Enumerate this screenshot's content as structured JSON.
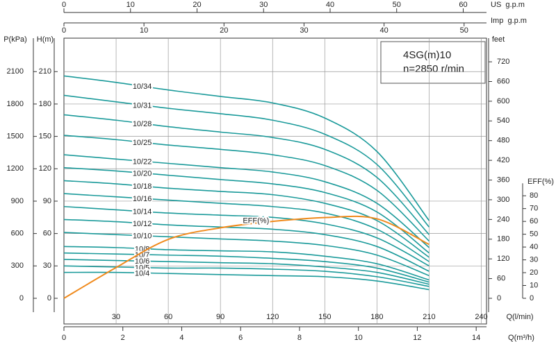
{
  "chart_data": {
    "type": "line",
    "title": "4SG(m)10",
    "subtitle": "n=2850 r/min",
    "x": [
      0,
      30,
      60,
      90,
      120,
      150,
      180,
      210
    ],
    "xlabel": "Q(l/min)",
    "xlim": [
      0,
      243
    ],
    "xticks": [
      30,
      60,
      90,
      120,
      150,
      180,
      210,
      240
    ],
    "ylabel": "H(m)",
    "ylim": [
      0,
      241
    ],
    "yticks": [
      0,
      30,
      60,
      90,
      120,
      150,
      180,
      210
    ],
    "grid": true,
    "extra_axes": [
      {
        "side": "bottom2",
        "label": "Q(m³/h)",
        "lim": [
          0,
          14.35
        ],
        "ticks": [
          0,
          2,
          4,
          6,
          8,
          10,
          12,
          14
        ]
      },
      {
        "side": "top",
        "label": "US  g.p.m",
        "lim": [
          0,
          63.5
        ],
        "ticks": [
          0,
          10,
          20,
          30,
          40,
          50,
          60
        ]
      },
      {
        "side": "top2",
        "label": "Imp  g.p.m",
        "lim": [
          0,
          52.8
        ],
        "ticks": [
          0,
          10,
          20,
          30,
          40,
          50
        ]
      },
      {
        "side": "left2",
        "label": "P(kPa)",
        "lim": [
          0,
          2410
        ],
        "ticks": [
          0,
          300,
          600,
          900,
          1200,
          1500,
          1800,
          2100
        ]
      },
      {
        "side": "right",
        "label": "feet",
        "lim": [
          0,
          792
        ],
        "ticks": [
          0,
          60,
          120,
          180,
          240,
          300,
          360,
          420,
          480,
          540,
          600,
          660,
          720
        ]
      },
      {
        "side": "right2",
        "label": "EFF(%)",
        "lim": [
          0,
          203
        ],
        "ticks": [
          0,
          10,
          20,
          30,
          40,
          50,
          60,
          70,
          80
        ]
      }
    ],
    "series": [
      {
        "name": "10/34",
        "color": "#1a9a9a",
        "values": [
          206,
          200,
          193,
          187,
          181,
          167,
          136,
          72
        ]
      },
      {
        "name": "10/31",
        "color": "#1a9a9a",
        "values": [
          188,
          182,
          176,
          171,
          165,
          152,
          124,
          66
        ]
      },
      {
        "name": "10/28",
        "color": "#1a9a9a",
        "values": [
          170,
          165,
          159,
          154,
          149,
          138,
          112,
          59
        ]
      },
      {
        "name": "10/25",
        "color": "#1a9a9a",
        "values": [
          151,
          147,
          142,
          138,
          133,
          123,
          100,
          53
        ]
      },
      {
        "name": "10/22",
        "color": "#1a9a9a",
        "values": [
          133,
          129,
          125,
          121,
          117,
          108,
          88,
          47
        ]
      },
      {
        "name": "10/20",
        "color": "#1a9a9a",
        "values": [
          121,
          118,
          114,
          110,
          106,
          98,
          80,
          42
        ]
      },
      {
        "name": "10/18",
        "color": "#1a9a9a",
        "values": [
          109,
          106,
          102,
          99,
          96,
          88,
          72,
          38
        ]
      },
      {
        "name": "10/16",
        "color": "#1a9a9a",
        "values": [
          97,
          94,
          91,
          88,
          85,
          79,
          64,
          34
        ]
      },
      {
        "name": "10/14",
        "color": "#1a9a9a",
        "values": [
          85,
          82,
          79,
          77,
          75,
          69,
          56,
          30
        ]
      },
      {
        "name": "10/12",
        "color": "#1a9a9a",
        "values": [
          73,
          71,
          68,
          66,
          64,
          59,
          48,
          25
        ]
      },
      {
        "name": "10/10",
        "color": "#1a9a9a",
        "values": [
          61,
          59,
          57,
          55,
          53,
          49,
          40,
          21
        ]
      },
      {
        "name": "10/8",
        "color": "#1a9a9a",
        "values": [
          48,
          47,
          45,
          44,
          43,
          39,
          32,
          17
        ]
      },
      {
        "name": "10/7",
        "color": "#1a9a9a",
        "values": [
          42,
          41,
          40,
          39,
          37,
          34,
          28,
          15
        ]
      },
      {
        "name": "10/6",
        "color": "#1a9a9a",
        "values": [
          36,
          35,
          34,
          33,
          32,
          29,
          24,
          13
        ]
      },
      {
        "name": "10/5",
        "color": "#1a9a9a",
        "values": [
          30,
          29,
          28,
          28,
          27,
          25,
          20,
          11
        ]
      },
      {
        "name": "10/4",
        "color": "#1a9a9a",
        "values": [
          24,
          24,
          23,
          22,
          21,
          20,
          16,
          8
        ]
      },
      {
        "name": "EFF(%)",
        "color": "#f08a1c",
        "axis": "right2",
        "values": [
          0,
          24,
          46,
          55,
          60,
          63,
          62,
          42
        ]
      }
    ]
  }
}
